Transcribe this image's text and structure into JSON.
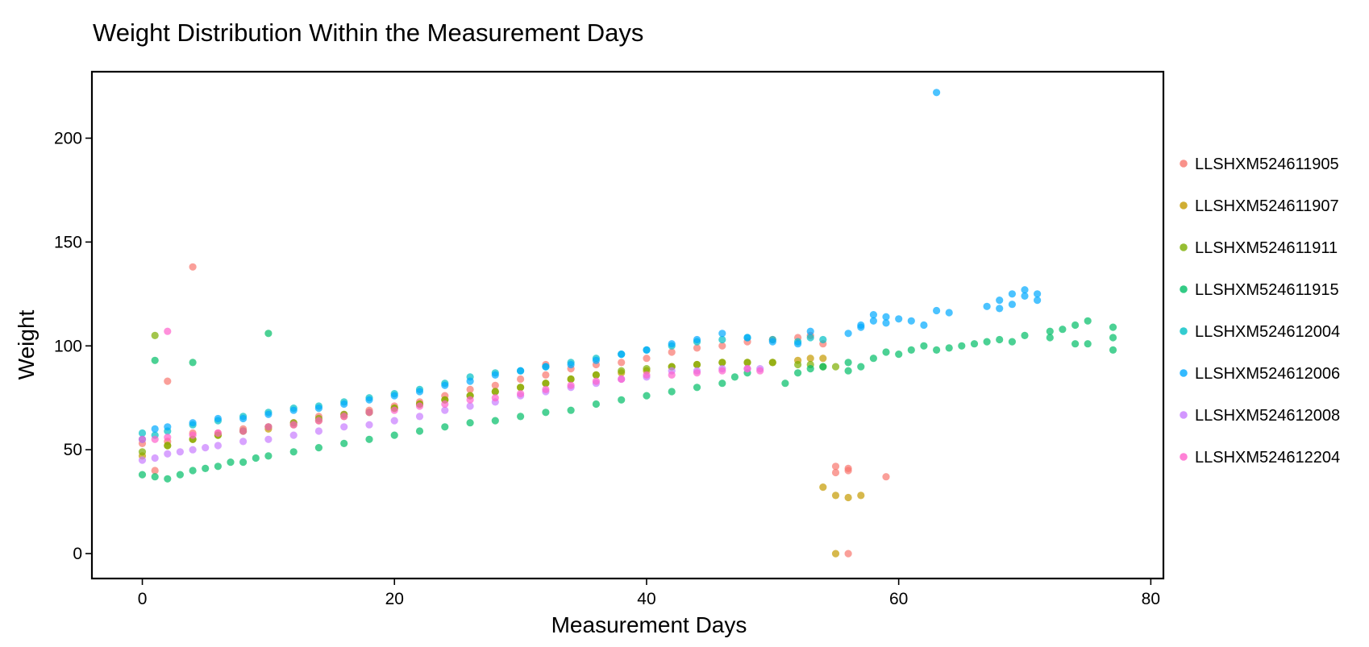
{
  "chart_data": {
    "type": "scatter",
    "title": "Weight Distribution Within the Measurement Days",
    "xlabel": "Measurement Days",
    "ylabel": "Weight",
    "xlim": [
      -4,
      81
    ],
    "ylim": [
      -12,
      232
    ],
    "xticks": [
      0,
      20,
      40,
      60,
      80
    ],
    "yticks": [
      0,
      50,
      100,
      150,
      200
    ],
    "grid": false,
    "legend_position": "right",
    "point_opacity": 0.7,
    "series": [
      {
        "name": "LLSHXM524611905",
        "color": "#F8766D",
        "points": [
          [
            0,
            53
          ],
          [
            1,
            40
          ],
          [
            2,
            83
          ],
          [
            2,
            54
          ],
          [
            4,
            138
          ],
          [
            4,
            58
          ],
          [
            6,
            58
          ],
          [
            8,
            60
          ],
          [
            10,
            61
          ],
          [
            12,
            63
          ],
          [
            14,
            66
          ],
          [
            16,
            67
          ],
          [
            18,
            69
          ],
          [
            20,
            71
          ],
          [
            22,
            73
          ],
          [
            24,
            76
          ],
          [
            26,
            79
          ],
          [
            28,
            81
          ],
          [
            30,
            84
          ],
          [
            32,
            91
          ],
          [
            32,
            86
          ],
          [
            34,
            89
          ],
          [
            36,
            91
          ],
          [
            38,
            92
          ],
          [
            40,
            94
          ],
          [
            42,
            97
          ],
          [
            44,
            99
          ],
          [
            46,
            100
          ],
          [
            48,
            102
          ],
          [
            50,
            103
          ],
          [
            52,
            104
          ],
          [
            53,
            105
          ],
          [
            54,
            101
          ],
          [
            55,
            42
          ],
          [
            55,
            39
          ],
          [
            56,
            41
          ],
          [
            56,
            40
          ],
          [
            56,
            0
          ],
          [
            59,
            37
          ]
        ]
      },
      {
        "name": "LLSHXM524611907",
        "color": "#C49A00",
        "points": [
          [
            0,
            47
          ],
          [
            2,
            52
          ],
          [
            4,
            55
          ],
          [
            6,
            57
          ],
          [
            8,
            59
          ],
          [
            10,
            60
          ],
          [
            12,
            62
          ],
          [
            14,
            64
          ],
          [
            16,
            66
          ],
          [
            18,
            68
          ],
          [
            20,
            70
          ],
          [
            22,
            72
          ],
          [
            24,
            74
          ],
          [
            26,
            76
          ],
          [
            28,
            78
          ],
          [
            30,
            80
          ],
          [
            32,
            82
          ],
          [
            34,
            84
          ],
          [
            36,
            86
          ],
          [
            38,
            87
          ],
          [
            40,
            88
          ],
          [
            42,
            90
          ],
          [
            44,
            91
          ],
          [
            46,
            92
          ],
          [
            48,
            92
          ],
          [
            50,
            92
          ],
          [
            52,
            93
          ],
          [
            53,
            94
          ],
          [
            54,
            94
          ],
          [
            54,
            32
          ],
          [
            55,
            28
          ],
          [
            55,
            0
          ],
          [
            56,
            27
          ],
          [
            57,
            28
          ]
        ]
      },
      {
        "name": "LLSHXM524611911",
        "color": "#7CAE00",
        "points": [
          [
            0,
            49
          ],
          [
            1,
            105
          ],
          [
            2,
            52
          ],
          [
            4,
            55
          ],
          [
            6,
            57
          ],
          [
            8,
            59
          ],
          [
            10,
            61
          ],
          [
            12,
            63
          ],
          [
            14,
            65
          ],
          [
            16,
            67
          ],
          [
            18,
            68
          ],
          [
            20,
            70
          ],
          [
            22,
            72
          ],
          [
            24,
            74
          ],
          [
            26,
            76
          ],
          [
            28,
            78
          ],
          [
            30,
            80
          ],
          [
            32,
            82
          ],
          [
            34,
            84
          ],
          [
            36,
            86
          ],
          [
            38,
            88
          ],
          [
            40,
            89
          ],
          [
            42,
            90
          ],
          [
            44,
            91
          ],
          [
            46,
            92
          ],
          [
            48,
            92
          ],
          [
            50,
            92
          ],
          [
            52,
            91
          ],
          [
            53,
            91
          ],
          [
            54,
            90
          ],
          [
            55,
            90
          ]
        ]
      },
      {
        "name": "LLSHXM524611915",
        "color": "#00BE67",
        "points": [
          [
            0,
            38
          ],
          [
            1,
            93
          ],
          [
            1,
            37
          ],
          [
            2,
            36
          ],
          [
            3,
            38
          ],
          [
            4,
            92
          ],
          [
            4,
            40
          ],
          [
            5,
            41
          ],
          [
            6,
            42
          ],
          [
            7,
            44
          ],
          [
            8,
            44
          ],
          [
            9,
            46
          ],
          [
            10,
            106
          ],
          [
            10,
            47
          ],
          [
            12,
            49
          ],
          [
            14,
            51
          ],
          [
            16,
            53
          ],
          [
            18,
            55
          ],
          [
            20,
            57
          ],
          [
            22,
            59
          ],
          [
            24,
            61
          ],
          [
            26,
            63
          ],
          [
            28,
            64
          ],
          [
            30,
            66
          ],
          [
            32,
            68
          ],
          [
            34,
            69
          ],
          [
            36,
            72
          ],
          [
            38,
            74
          ],
          [
            40,
            76
          ],
          [
            42,
            78
          ],
          [
            44,
            80
          ],
          [
            46,
            82
          ],
          [
            47,
            85
          ],
          [
            48,
            87
          ],
          [
            51,
            82
          ],
          [
            52,
            87
          ],
          [
            53,
            89
          ],
          [
            54,
            90
          ],
          [
            56,
            92
          ],
          [
            56,
            88
          ],
          [
            57,
            90
          ],
          [
            58,
            94
          ],
          [
            59,
            97
          ],
          [
            60,
            96
          ],
          [
            61,
            98
          ],
          [
            62,
            100
          ],
          [
            63,
            98
          ],
          [
            64,
            99
          ],
          [
            65,
            100
          ],
          [
            66,
            101
          ],
          [
            67,
            102
          ],
          [
            68,
            103
          ],
          [
            69,
            102
          ],
          [
            70,
            105
          ],
          [
            72,
            104
          ],
          [
            72,
            107
          ],
          [
            73,
            108
          ],
          [
            74,
            110
          ],
          [
            74,
            101
          ],
          [
            75,
            112
          ],
          [
            75,
            101
          ],
          [
            77,
            109
          ],
          [
            77,
            104
          ],
          [
            77,
            98
          ]
        ]
      },
      {
        "name": "LLSHXM524612004",
        "color": "#00BFC4",
        "points": [
          [
            0,
            58
          ],
          [
            1,
            57
          ],
          [
            2,
            59
          ],
          [
            4,
            62
          ],
          [
            6,
            64
          ],
          [
            8,
            66
          ],
          [
            10,
            68
          ],
          [
            12,
            70
          ],
          [
            14,
            71
          ],
          [
            16,
            73
          ],
          [
            18,
            75
          ],
          [
            20,
            77
          ],
          [
            22,
            79
          ],
          [
            24,
            82
          ],
          [
            26,
            85
          ],
          [
            28,
            87
          ],
          [
            30,
            88
          ],
          [
            32,
            90
          ],
          [
            34,
            92
          ],
          [
            36,
            94
          ],
          [
            38,
            96
          ],
          [
            40,
            98
          ],
          [
            42,
            100
          ],
          [
            44,
            102
          ],
          [
            46,
            103
          ],
          [
            48,
            104
          ],
          [
            50,
            103
          ],
          [
            52,
            102
          ],
          [
            53,
            104
          ],
          [
            54,
            103
          ]
        ]
      },
      {
        "name": "LLSHXM524612006",
        "color": "#00A9FF",
        "points": [
          [
            0,
            55
          ],
          [
            1,
            60
          ],
          [
            2,
            61
          ],
          [
            4,
            63
          ],
          [
            6,
            65
          ],
          [
            8,
            65
          ],
          [
            10,
            67
          ],
          [
            12,
            69
          ],
          [
            14,
            70
          ],
          [
            16,
            72
          ],
          [
            18,
            74
          ],
          [
            20,
            76
          ],
          [
            22,
            78
          ],
          [
            24,
            81
          ],
          [
            26,
            83
          ],
          [
            28,
            86
          ],
          [
            30,
            88
          ],
          [
            32,
            90
          ],
          [
            34,
            91
          ],
          [
            36,
            93
          ],
          [
            38,
            96
          ],
          [
            40,
            98
          ],
          [
            42,
            101
          ],
          [
            44,
            103
          ],
          [
            46,
            106
          ],
          [
            48,
            104
          ],
          [
            50,
            102
          ],
          [
            52,
            101
          ],
          [
            53,
            107
          ],
          [
            56,
            106
          ],
          [
            57,
            109
          ],
          [
            57,
            110
          ],
          [
            58,
            115
          ],
          [
            58,
            112
          ],
          [
            59,
            114
          ],
          [
            59,
            111
          ],
          [
            60,
            113
          ],
          [
            61,
            112
          ],
          [
            62,
            110
          ],
          [
            63,
            222
          ],
          [
            63,
            117
          ],
          [
            64,
            116
          ],
          [
            67,
            119
          ],
          [
            68,
            122
          ],
          [
            68,
            118
          ],
          [
            69,
            125
          ],
          [
            69,
            120
          ],
          [
            70,
            127
          ],
          [
            70,
            124
          ],
          [
            71,
            125
          ],
          [
            71,
            122
          ]
        ]
      },
      {
        "name": "LLSHXM524612008",
        "color": "#C77CFF",
        "points": [
          [
            0,
            45
          ],
          [
            1,
            46
          ],
          [
            2,
            48
          ],
          [
            3,
            49
          ],
          [
            4,
            50
          ],
          [
            5,
            51
          ],
          [
            6,
            52
          ],
          [
            8,
            54
          ],
          [
            10,
            55
          ],
          [
            12,
            57
          ],
          [
            14,
            59
          ],
          [
            16,
            61
          ],
          [
            18,
            62
          ],
          [
            20,
            64
          ],
          [
            22,
            66
          ],
          [
            24,
            69
          ],
          [
            26,
            71
          ],
          [
            28,
            73
          ],
          [
            30,
            76
          ],
          [
            32,
            78
          ],
          [
            34,
            80
          ],
          [
            36,
            82
          ],
          [
            38,
            84
          ],
          [
            40,
            85
          ],
          [
            42,
            88
          ],
          [
            44,
            88
          ],
          [
            46,
            89
          ],
          [
            48,
            89
          ],
          [
            49,
            89
          ]
        ]
      },
      {
        "name": "LLSHXM524612204",
        "color": "#FF61CC",
        "points": [
          [
            0,
            55
          ],
          [
            1,
            55
          ],
          [
            2,
            107
          ],
          [
            2,
            56
          ],
          [
            4,
            57
          ],
          [
            6,
            58
          ],
          [
            8,
            59
          ],
          [
            10,
            61
          ],
          [
            12,
            62
          ],
          [
            14,
            64
          ],
          [
            16,
            66
          ],
          [
            18,
            68
          ],
          [
            20,
            69
          ],
          [
            22,
            71
          ],
          [
            24,
            72
          ],
          [
            26,
            74
          ],
          [
            28,
            75
          ],
          [
            30,
            77
          ],
          [
            32,
            79
          ],
          [
            34,
            81
          ],
          [
            36,
            83
          ],
          [
            38,
            84
          ],
          [
            40,
            86
          ],
          [
            42,
            86
          ],
          [
            44,
            87
          ],
          [
            46,
            88
          ],
          [
            48,
            89
          ],
          [
            49,
            88
          ]
        ]
      }
    ]
  }
}
